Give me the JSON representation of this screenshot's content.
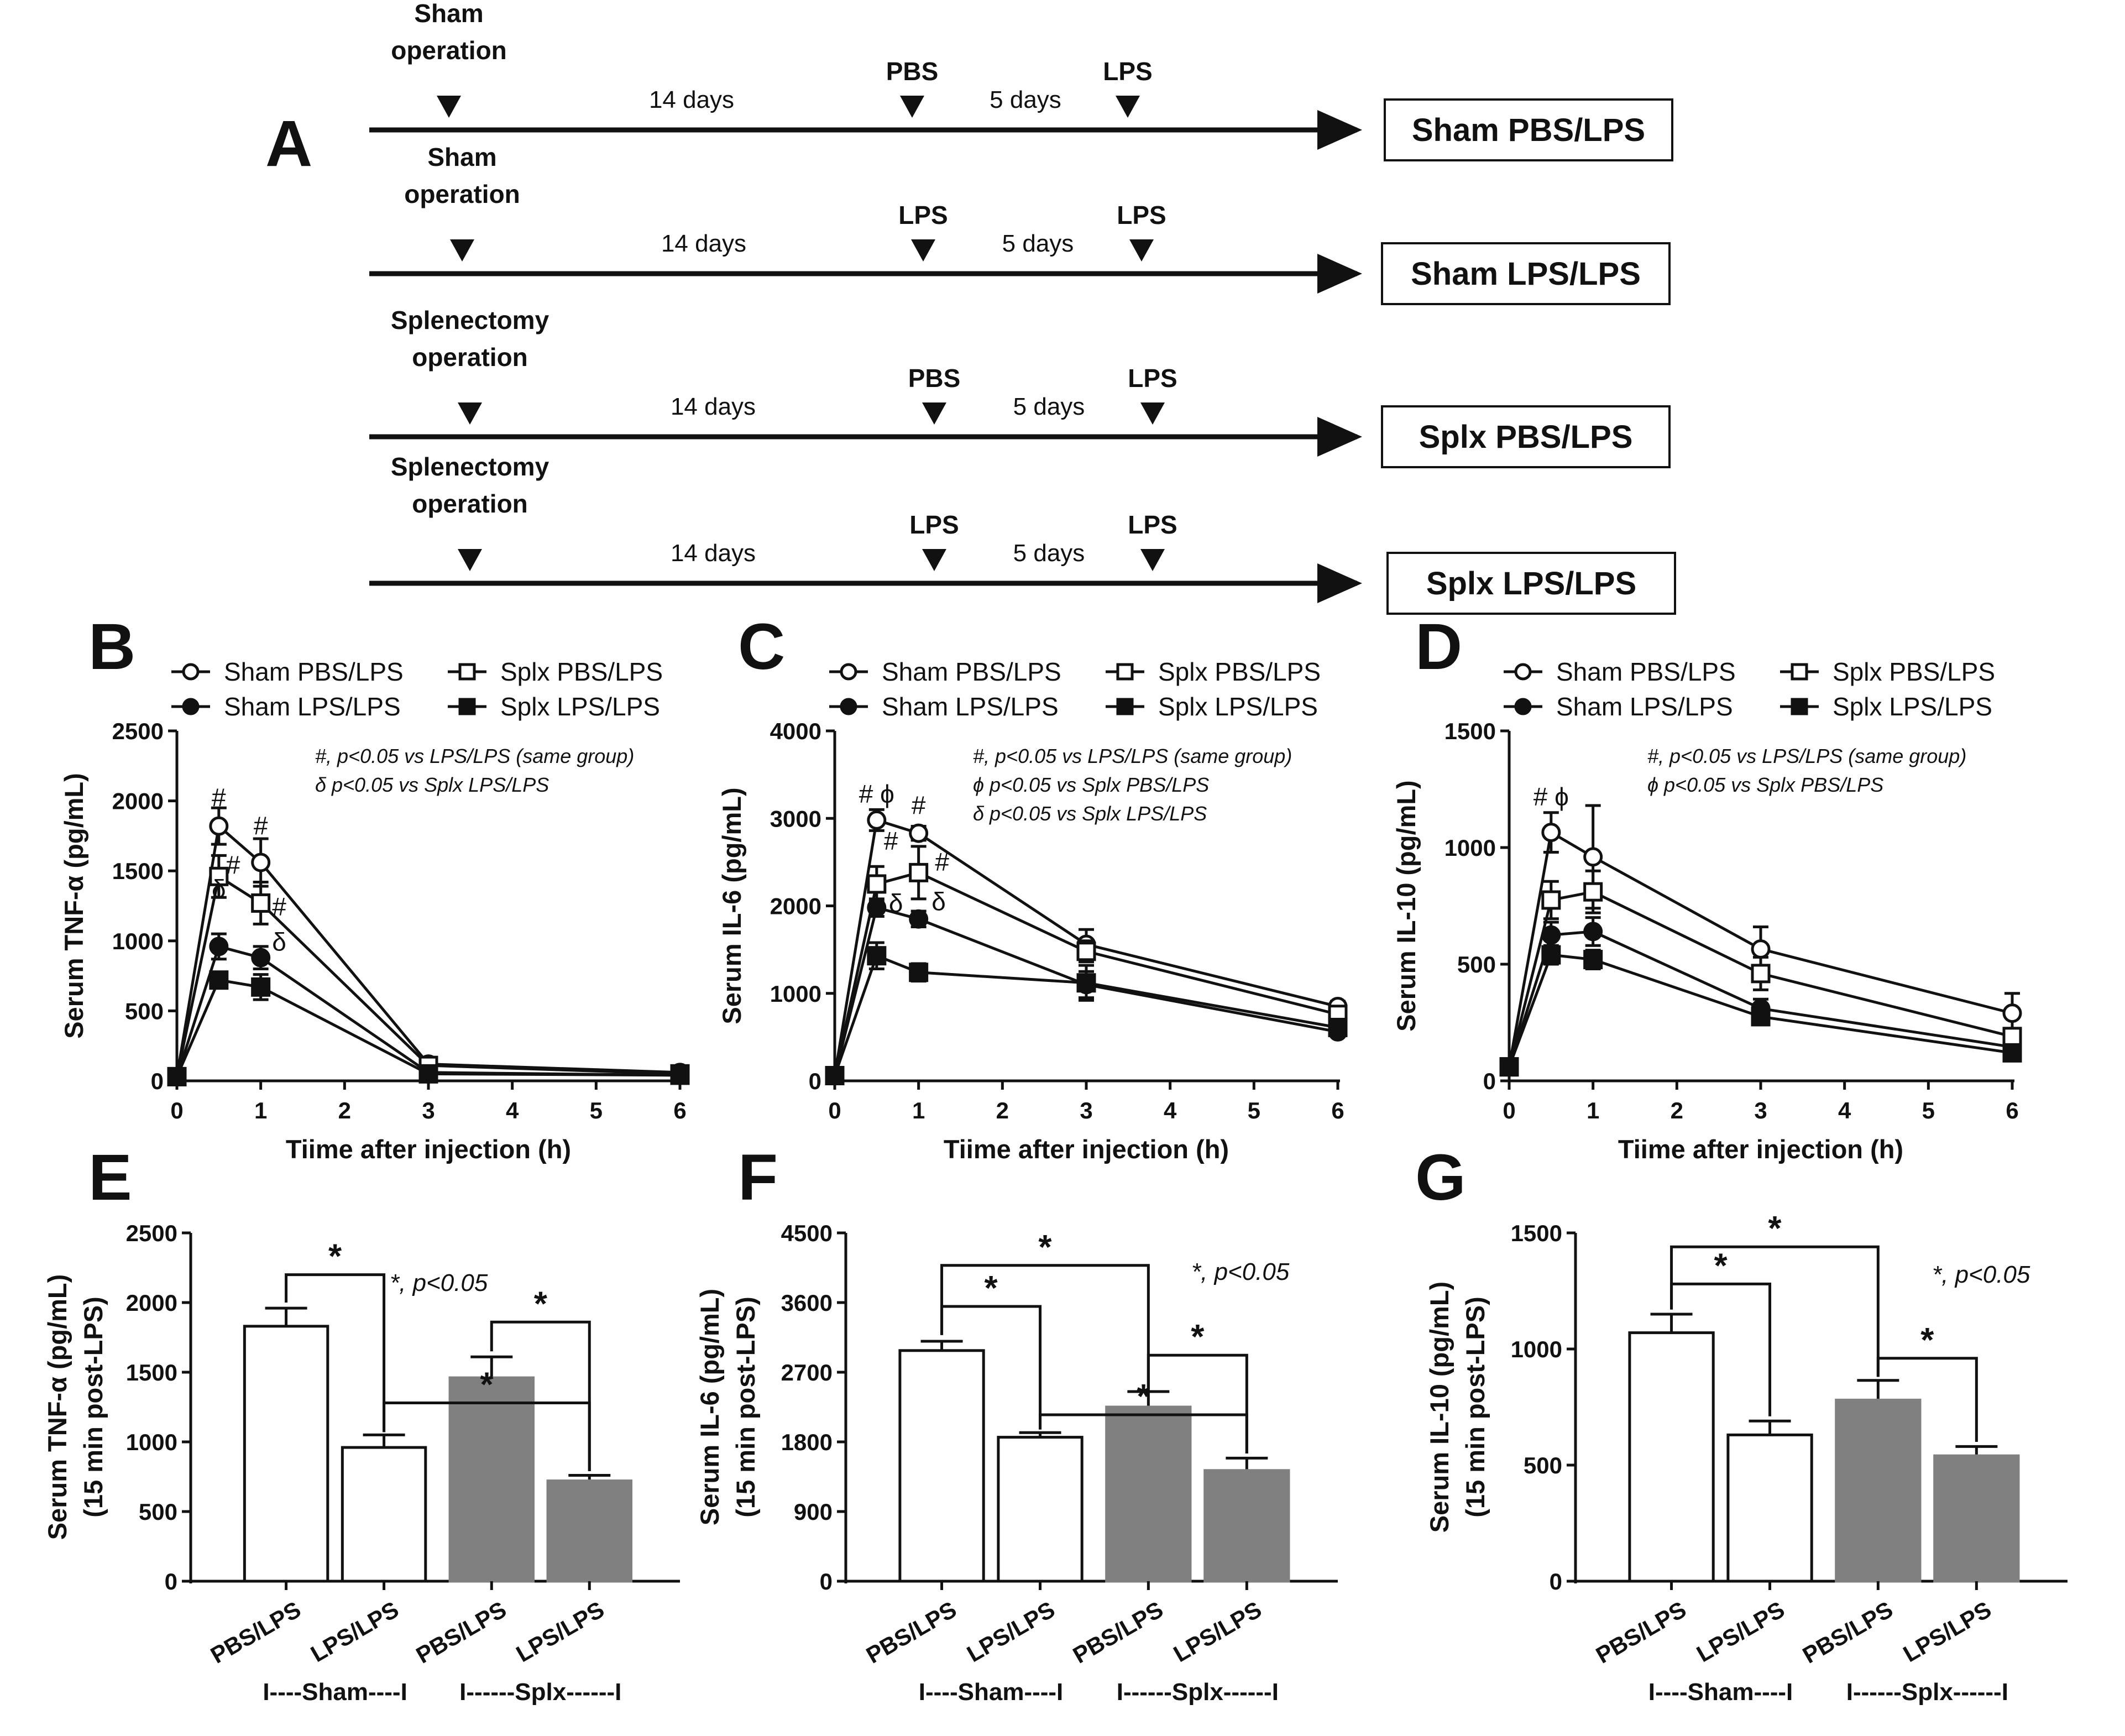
{
  "panel_labels": {
    "A": "A",
    "B": "B",
    "C": "C",
    "D": "D",
    "E": "E",
    "F": "F",
    "G": "G"
  },
  "timeline": {
    "rows": [
      {
        "op": [
          "Sham",
          "operation"
        ],
        "dose1": "PBS",
        "dose2": "LPS",
        "gap1": "14 days",
        "gap2": "5 days",
        "group": "Sham PBS/LPS"
      },
      {
        "op": [
          "Sham",
          "operation"
        ],
        "dose1": "LPS",
        "dose2": "LPS",
        "gap1": "14 days",
        "gap2": "5 days",
        "group": "Sham LPS/LPS"
      },
      {
        "op": [
          "Splenectomy",
          "operation"
        ],
        "dose1": "PBS",
        "dose2": "LPS",
        "gap1": "14 days",
        "gap2": "5 days",
        "group": "Splx PBS/LPS"
      },
      {
        "op": [
          "Splenectomy",
          "operation"
        ],
        "dose1": "LPS",
        "dose2": "LPS",
        "gap1": "14 days",
        "gap2": "5 days",
        "group": "Splx LPS/LPS"
      }
    ]
  },
  "legend": [
    "Sham PBS/LPS",
    "Splx PBS/LPS",
    "Sham LPS/LPS",
    "Splx LPS/LPS"
  ],
  "colors": {
    "open": "#ffffff",
    "filled": "#111111",
    "grey_bar": "#808080",
    "axis": "#111111"
  },
  "chart_data": [
    {
      "id": "B",
      "type": "line",
      "title": "",
      "xlabel": "Tiime after injection (h)",
      "ylabel": "Serum TNF-α (pg/mL)",
      "x": [
        0,
        0.5,
        1,
        3,
        6
      ],
      "xticks": [
        0,
        1,
        2,
        3,
        4,
        5,
        6
      ],
      "yticks": [
        0,
        500,
        1000,
        1500,
        2000,
        2500
      ],
      "xlim": [
        0,
        6
      ],
      "ylim": [
        0,
        2500
      ],
      "series": [
        {
          "name": "Sham PBS/LPS",
          "marker": "circle-open",
          "values": [
            30,
            1820,
            1560,
            120,
            60
          ],
          "err": [
            0,
            130,
            170,
            20,
            10
          ]
        },
        {
          "name": "Sham LPS/LPS",
          "marker": "circle-filled",
          "values": [
            30,
            960,
            880,
            60,
            40
          ],
          "err": [
            0,
            90,
            80,
            10,
            8
          ]
        },
        {
          "name": "Splx PBS/LPS",
          "marker": "square-open",
          "values": [
            30,
            1460,
            1270,
            110,
            50
          ],
          "err": [
            0,
            150,
            150,
            15,
            10
          ]
        },
        {
          "name": "Splx LPS/LPS",
          "marker": "square-filled",
          "values": [
            30,
            720,
            670,
            50,
            40
          ],
          "err": [
            0,
            40,
            90,
            8,
            8
          ]
        }
      ],
      "notes": [
        "#, p<0.05 vs LPS/LPS (same group)",
        "δ p<0.05 vs Splx LPS/LPS"
      ],
      "annotations": [
        {
          "text": "#",
          "x": 0.5,
          "y": 1960
        },
        {
          "text": "#",
          "x": 1,
          "y": 1760
        },
        {
          "text": "#",
          "x": 0.67,
          "y": 1480
        },
        {
          "text": "#",
          "x": 1.22,
          "y": 1180
        },
        {
          "text": "δ",
          "x": 0.5,
          "y": 1310
        },
        {
          "text": "δ",
          "x": 1.22,
          "y": 930
        }
      ]
    },
    {
      "id": "C",
      "type": "line",
      "title": "",
      "xlabel": "Tiime after injection (h)",
      "ylabel": "Serum IL-6 (pg/mL)",
      "x": [
        0,
        0.5,
        1,
        3,
        6
      ],
      "xticks": [
        0,
        1,
        2,
        3,
        4,
        5,
        6
      ],
      "yticks": [
        0,
        1000,
        2000,
        3000,
        4000
      ],
      "xlim": [
        0,
        6
      ],
      "ylim": [
        0,
        4000
      ],
      "series": [
        {
          "name": "Sham PBS/LPS",
          "marker": "circle-open",
          "values": [
            60,
            2980,
            2830,
            1560,
            850
          ],
          "err": [
            0,
            120,
            80,
            170,
            60
          ]
        },
        {
          "name": "Sham LPS/LPS",
          "marker": "circle-filled",
          "values": [
            60,
            1980,
            1850,
            1100,
            560
          ],
          "err": [
            0,
            100,
            90,
            150,
            50
          ]
        },
        {
          "name": "Splx PBS/LPS",
          "marker": "square-open",
          "values": [
            60,
            2250,
            2380,
            1480,
            760
          ],
          "err": [
            0,
            200,
            300,
            120,
            50
          ]
        },
        {
          "name": "Splx LPS/LPS",
          "marker": "square-filled",
          "values": [
            60,
            1430,
            1240,
            1120,
            610
          ],
          "err": [
            0,
            150,
            100,
            200,
            50
          ]
        }
      ],
      "notes": [
        "#, p<0.05 vs LPS/LPS (same group)",
        "ϕ p<0.05 vs Splx PBS/LPS",
        "δ p<0.05 vs Splx LPS/LPS"
      ],
      "annotations": [
        {
          "text": "# ϕ",
          "x": 0.5,
          "y": 3180
        },
        {
          "text": "#",
          "x": 1,
          "y": 3050
        },
        {
          "text": "#",
          "x": 0.67,
          "y": 2640
        },
        {
          "text": "#",
          "x": 1.28,
          "y": 2400
        },
        {
          "text": "δ",
          "x": 0.73,
          "y": 1930
        },
        {
          "text": "δ",
          "x": 1.24,
          "y": 1950
        }
      ]
    },
    {
      "id": "D",
      "type": "line",
      "title": "",
      "xlabel": "Tiime after injection (h)",
      "ylabel": "Serum IL-10 (pg/mL)",
      "x": [
        0,
        0.5,
        1,
        3,
        6
      ],
      "xticks": [
        0,
        1,
        2,
        3,
        4,
        5,
        6
      ],
      "yticks": [
        0,
        500,
        1000,
        1500
      ],
      "xlim": [
        0,
        6
      ],
      "ylim": [
        0,
        1500
      ],
      "series": [
        {
          "name": "Sham PBS/LPS",
          "marker": "circle-open",
          "values": [
            60,
            1065,
            960,
            565,
            290
          ],
          "err": [
            0,
            85,
            220,
            95,
            85
          ]
        },
        {
          "name": "Sham LPS/LPS",
          "marker": "circle-filled",
          "values": [
            60,
            625,
            640,
            310,
            145
          ],
          "err": [
            0,
            55,
            60,
            40,
            20
          ]
        },
        {
          "name": "Splx PBS/LPS",
          "marker": "square-open",
          "values": [
            60,
            775,
            810,
            460,
            190
          ],
          "err": [
            0,
            80,
            90,
            70,
            25
          ]
        },
        {
          "name": "Splx LPS/LPS",
          "marker": "square-filled",
          "values": [
            60,
            540,
            520,
            275,
            120
          ],
          "err": [
            0,
            40,
            40,
            35,
            15
          ]
        }
      ],
      "notes": [
        "#, p<0.05 vs LPS/LPS (same group)",
        "ϕ p<0.05 vs Splx PBS/LPS"
      ],
      "annotations": [
        {
          "text": "# ϕ",
          "x": 0.5,
          "y": 1180
        }
      ]
    },
    {
      "id": "E",
      "type": "bar",
      "title": "",
      "xlabel": "",
      "ylabel": [
        "Serum TNF-α (pg/mL)",
        "(15 min post-LPS)"
      ],
      "categories": [
        "PBS/LPS",
        "LPS/LPS",
        "PBS/LPS",
        "LPS/LPS"
      ],
      "values": [
        1830,
        960,
        1460,
        720
      ],
      "err": [
        130,
        90,
        150,
        40
      ],
      "fill": [
        "open",
        "open",
        "grey",
        "grey"
      ],
      "yticks": [
        0,
        500,
        1000,
        1500,
        2000,
        2500
      ],
      "ylim": [
        0,
        2500
      ],
      "groups": [
        "I----Sham----I",
        "I------Splx------I"
      ],
      "significance": "*, p<0.05",
      "brackets": [
        {
          "a": 0,
          "b": 1,
          "from": [
            2000,
            1070
          ],
          "top": 2200,
          "label": "*"
        },
        {
          "a": 2,
          "b": 3,
          "from": [
            1650,
            790
          ],
          "top": 1860,
          "label": "*"
        },
        {
          "a": 1,
          "b": 3,
          "from": [
            1070,
            790
          ],
          "top": 1280,
          "label": "*"
        }
      ]
    },
    {
      "id": "F",
      "type": "bar",
      "title": "",
      "xlabel": "",
      "ylabel": [
        "Serum IL-6 (pg/mL)",
        "(15 min post-LPS)"
      ],
      "categories": [
        "PBS/LPS",
        "LPS/LPS",
        "PBS/LPS",
        "LPS/LPS"
      ],
      "values": [
        2980,
        1860,
        2250,
        1430
      ],
      "err": [
        120,
        60,
        200,
        160
      ],
      "fill": [
        "open",
        "open",
        "grey",
        "grey"
      ],
      "yticks": [
        0,
        900,
        1800,
        2700,
        3600,
        4500
      ],
      "ylim": [
        0,
        4500
      ],
      "groups": [
        "I----Sham----I",
        "I------Splx------I"
      ],
      "significance": "*, p<0.05",
      "brackets": [
        {
          "a": 0,
          "b": 1,
          "from": [
            3180,
            1960
          ],
          "top": 3550,
          "label": "*"
        },
        {
          "a": 0,
          "b": 2,
          "from": [
            3180,
            2480
          ],
          "top": 4080,
          "label": "*"
        },
        {
          "a": 2,
          "b": 3,
          "from": [
            2480,
            1650
          ],
          "top": 2920,
          "label": "*"
        },
        {
          "a": 1,
          "b": 3,
          "from": [
            1960,
            1650
          ],
          "top": 2150,
          "label": "*"
        }
      ]
    },
    {
      "id": "G",
      "type": "bar",
      "title": "",
      "xlabel": "",
      "ylabel": [
        "Serum IL-10 (pg/mL)",
        "(15 min post-LPS)"
      ],
      "categories": [
        "PBS/LPS",
        "LPS/LPS",
        "PBS/LPS",
        "LPS/LPS"
      ],
      "values": [
        1070,
        630,
        780,
        540
      ],
      "err": [
        80,
        60,
        85,
        40
      ],
      "fill": [
        "open",
        "open",
        "grey",
        "grey"
      ],
      "yticks": [
        0,
        500,
        1000,
        1500
      ],
      "ylim": [
        0,
        1500
      ],
      "groups": [
        "I----Sham----I",
        "I------Splx------I"
      ],
      "significance": "*, p<0.05",
      "brackets": [
        {
          "a": 0,
          "b": 1,
          "from": [
            1170,
            710
          ],
          "top": 1280,
          "label": "*"
        },
        {
          "a": 0,
          "b": 2,
          "from": [
            1170,
            880
          ],
          "top": 1440,
          "label": "*"
        },
        {
          "a": 2,
          "b": 3,
          "from": [
            880,
            600
          ],
          "top": 960,
          "label": "*"
        }
      ]
    }
  ]
}
